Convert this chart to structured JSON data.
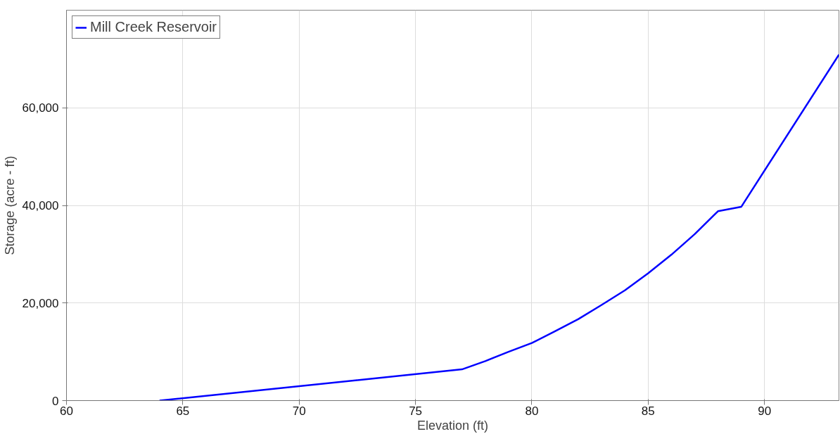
{
  "chart_data": {
    "type": "line",
    "xlabel": "Elevation (ft)",
    "ylabel": "Storage (acre - ft)",
    "x": [
      64,
      77,
      78,
      79,
      80,
      81,
      82,
      83,
      84,
      85,
      86,
      87,
      88,
      89,
      93.2
    ],
    "series": [
      {
        "name": "Mill Creek Reservoir",
        "color": "#0000ff",
        "values": [
          0,
          6400,
          8100,
          10000,
          11800,
          14200,
          16700,
          19600,
          22600,
          26100,
          29900,
          34100,
          38800,
          39700,
          70900
        ]
      }
    ],
    "xlim": [
      60,
      93.2
    ],
    "xticks": [
      60,
      65,
      70,
      75,
      80,
      85,
      90
    ],
    "ylim": [
      0,
      80000
    ],
    "yticks": [
      0,
      {
        "value": 20000,
        "label": "20,000"
      },
      {
        "value": 40000,
        "label": "40,000"
      },
      {
        "value": 60000,
        "label": "60,000"
      }
    ],
    "grid": true,
    "legend": "top left",
    "marker": "none",
    "line_style": "solid"
  }
}
